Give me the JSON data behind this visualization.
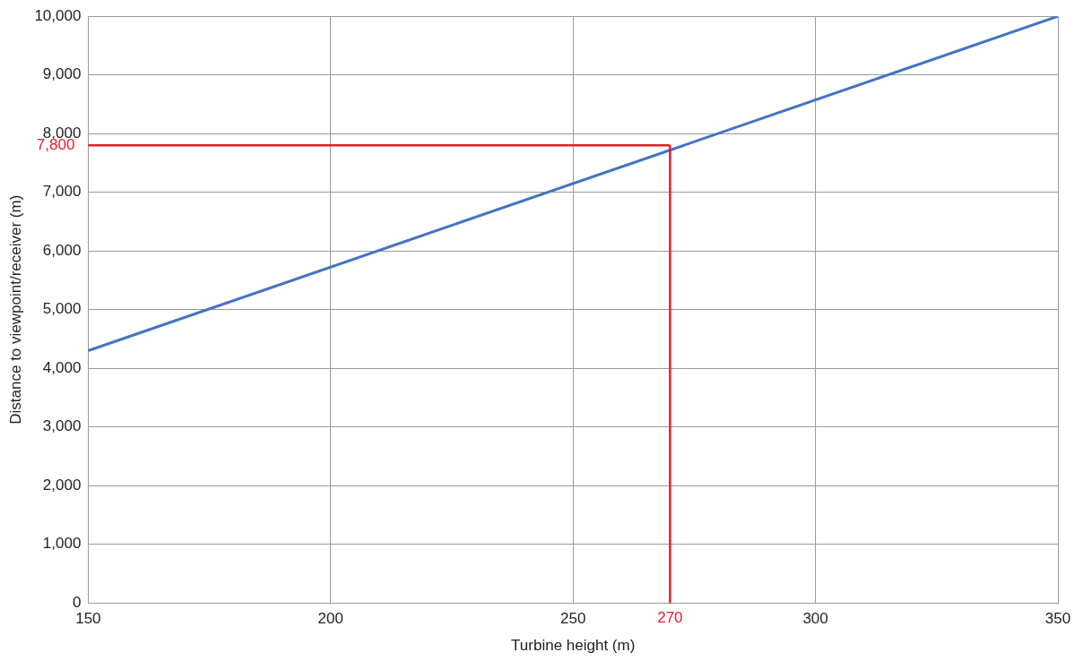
{
  "chart_data": {
    "type": "line",
    "xlabel": "Turbine height (m)",
    "ylabel": "Distance to viewpoint/receiver (m)",
    "series": [
      {
        "color": "#4472c4",
        "x": [
          150,
          350
        ],
        "values": [
          4300,
          10000
        ]
      }
    ],
    "xlim": [
      150,
      350
    ],
    "xticks": [
      150,
      200,
      250,
      300,
      350
    ],
    "ylim": [
      0,
      10000
    ],
    "yticks": [
      0,
      {
        "value": 1000,
        "label": "1,000"
      },
      {
        "value": 2000,
        "label": "2,000"
      },
      {
        "value": 3000,
        "label": "3,000"
      },
      {
        "value": 4000,
        "label": "4,000"
      },
      {
        "value": 5000,
        "label": "5,000"
      },
      {
        "value": 6000,
        "label": "6,000"
      },
      {
        "value": 7000,
        "label": "7,000"
      },
      {
        "value": 8000,
        "label": "8,000"
      },
      {
        "value": 9000,
        "label": "9,000"
      },
      {
        "value": 10000,
        "label": "10,000"
      }
    ],
    "ref_lines": [
      {
        "axis": "x",
        "value": 270,
        "label": "270",
        "color": "#e0202a"
      },
      {
        "axis": "y",
        "value": 7800,
        "label": "7,800",
        "color": "#e0202a"
      }
    ],
    "grid": true,
    "marker": "none",
    "line_style": "solid",
    "legend": false
  }
}
